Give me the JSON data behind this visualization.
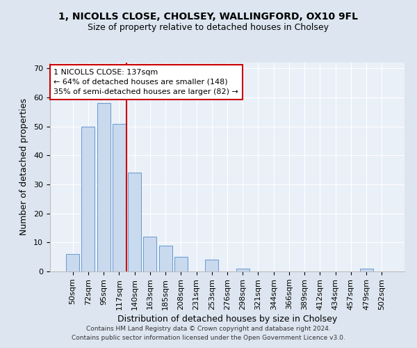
{
  "title1": "1, NICOLLS CLOSE, CHOLSEY, WALLINGFORD, OX10 9FL",
  "title2": "Size of property relative to detached houses in Cholsey",
  "xlabel": "Distribution of detached houses by size in Cholsey",
  "ylabel": "Number of detached properties",
  "categories": [
    "50sqm",
    "72sqm",
    "95sqm",
    "117sqm",
    "140sqm",
    "163sqm",
    "185sqm",
    "208sqm",
    "231sqm",
    "253sqm",
    "276sqm",
    "298sqm",
    "321sqm",
    "344sqm",
    "366sqm",
    "389sqm",
    "412sqm",
    "434sqm",
    "457sqm",
    "479sqm",
    "502sqm"
  ],
  "values": [
    6,
    50,
    58,
    51,
    34,
    12,
    9,
    5,
    0,
    4,
    0,
    1,
    0,
    0,
    0,
    0,
    0,
    0,
    0,
    1,
    0
  ],
  "bar_color": "#c9d9ee",
  "bar_edge_color": "#6699cc",
  "vline_color": "#cc0000",
  "annotation_text": "1 NICOLLS CLOSE: 137sqm\n← 64% of detached houses are smaller (148)\n35% of semi-detached houses are larger (82) →",
  "annotation_box_color": "#ffffff",
  "annotation_box_edge_color": "#cc0000",
  "ylim": [
    0,
    72
  ],
  "yticks": [
    0,
    10,
    20,
    30,
    40,
    50,
    60,
    70
  ],
  "footer1": "Contains HM Land Registry data © Crown copyright and database right 2024.",
  "footer2": "Contains public sector information licensed under the Open Government Licence v3.0.",
  "bg_color": "#dde6f0",
  "plot_bg_color": "#eaf0f8",
  "grid_color": "#ffffff",
  "title1_fontsize": 10,
  "title2_fontsize": 9,
  "xlabel_fontsize": 9,
  "ylabel_fontsize": 9,
  "tick_fontsize": 8,
  "annotation_fontsize": 8,
  "footer_fontsize": 6.5
}
